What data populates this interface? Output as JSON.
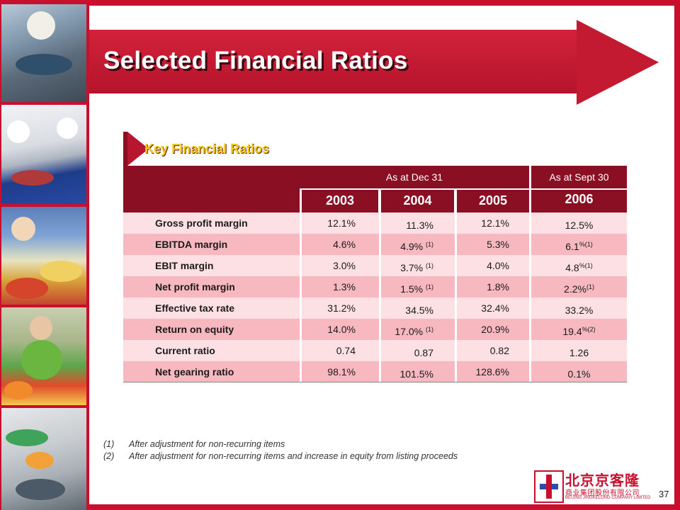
{
  "title": "Selected Financial Ratios",
  "section_label": "Key Financial Ratios",
  "column_groups": {
    "dec": "As at Dec 31",
    "sept": "As at Sept 30"
  },
  "years": [
    "2003",
    "2004",
    "2005",
    "2006"
  ],
  "rows": [
    {
      "metric": "Gross profit margin",
      "v2003": "12.1%",
      "v2004": "11.3%",
      "v2004_note": "",
      "v2005": "12.1%",
      "v2006": "12.5%",
      "v2006_note": ""
    },
    {
      "metric": "EBITDA margin",
      "v2003": "4.6%",
      "v2004": "4.9%",
      "v2004_note": "(1)",
      "v2005": "5.3%",
      "v2006": "6.1",
      "v2006_note": "%(1)"
    },
    {
      "metric": "EBIT margin",
      "v2003": "3.0%",
      "v2004": "3.7%",
      "v2004_note": "(1)",
      "v2005": "4.0%",
      "v2006": "4.8",
      "v2006_note": "%(1)"
    },
    {
      "metric": "Net profit margin",
      "v2003": "1.3%",
      "v2004": "1.5%",
      "v2004_note": "(1)",
      "v2005": "1.8%",
      "v2006": "2.2%",
      "v2006_note": "(1)"
    },
    {
      "metric": "Effective tax rate",
      "v2003": "31.2%",
      "v2004": "34.5%",
      "v2004_note": "",
      "v2005": "32.4%",
      "v2006": "33.2%",
      "v2006_note": ""
    },
    {
      "metric": "Return on equity",
      "v2003": "14.0%",
      "v2004": "17.0%",
      "v2004_note": "(1)",
      "v2005": "20.9%",
      "v2006": "19.4",
      "v2006_note": "%(2)"
    },
    {
      "metric": "Current ratio",
      "v2003": "0.74",
      "v2004": "0.87",
      "v2004_note": "",
      "v2005": "0.82",
      "v2006": "1.26",
      "v2006_note": ""
    },
    {
      "metric": "Net gearing ratio",
      "v2003": "98.1%",
      "v2004": "101.5%",
      "v2004_note": "",
      "v2005": "128.6%",
      "v2006": "0.1%",
      "v2006_note": ""
    }
  ],
  "footnotes": [
    {
      "num": "(1)",
      "text": "After adjustment for non-recurring items"
    },
    {
      "num": "(2)",
      "text": "After adjustment for non-recurring items and increase in equity from listing proceeds"
    }
  ],
  "logo": {
    "cn_name": "北京京客隆",
    "cn_sub": "商业集团股份有限公司",
    "en_name": "BEIJING JINGKELONG COMPANY LIMITED"
  },
  "page_number": "37",
  "colors": {
    "brand_red": "#c8102e",
    "header_dark": "#8a0f22",
    "row_light": "#fde0e4",
    "row_dark": "#f8b8c0",
    "tab_text": "#f2cc16"
  }
}
